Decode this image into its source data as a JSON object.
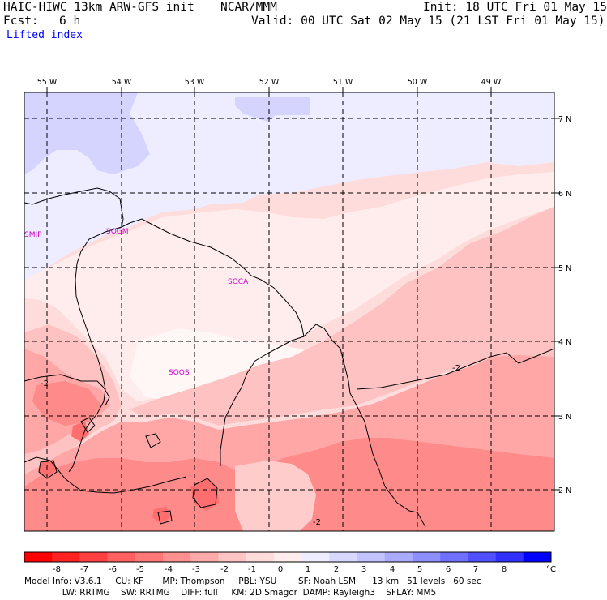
{
  "header": {
    "model_title": "HAIC-HIWC 13km ARW-GFS init",
    "org": "NCAR/MMM",
    "init": "Init: 18 UTC Fri 01 May 15",
    "fcst_label": "Fcst:",
    "fcst_value": "6 h",
    "valid": "Valid: 00 UTC Sat 02 May 15 (21 LST Fri 01 May 15)",
    "field": "Lifted index"
  },
  "map": {
    "longitude_labels": [
      "55 W",
      "54 W",
      "53 W",
      "52 W",
      "51 W",
      "50 W",
      "49 W"
    ],
    "latitude_labels": [
      "7 N",
      "6 N",
      "5 N",
      "4 N",
      "3 N",
      "2 N"
    ],
    "stations": [
      "SMJP",
      "SOGM",
      "SOCA",
      "SOOS"
    ],
    "contour_labels": [
      "-2",
      "-2",
      "-2"
    ]
  },
  "colorbar": {
    "colors": [
      "#ff0000",
      "#ff2222",
      "#ff4040",
      "#ff6060",
      "#ff7878",
      "#ff9090",
      "#ffaaaa",
      "#ffc4c4",
      "#ffdcdc",
      "#ffeded",
      "#ededff",
      "#d8d8ff",
      "#c2c2ff",
      "#aaaaff",
      "#8e8eff",
      "#7070ff",
      "#5050ff",
      "#3030ff",
      "#0000ff"
    ],
    "tick_labels": [
      "-8",
      "-7",
      "-6",
      "-5",
      "-4",
      "-3",
      "-2",
      "-1",
      "0",
      "1",
      "2",
      "3",
      "4",
      "5",
      "6",
      "7",
      "8"
    ],
    "unit": "°C"
  },
  "footer": {
    "line1": "Model Info: V3.6.1     CU: KF       MP: Thompson     PBL: YSU        SF: Noah LSM      13 km   51 levels   60 sec",
    "line2": "              LW: RRTMG    SW: RRTMG    DIFF: full     KM: 2D Smagor  DAMP: Rayleigh3    SFLAY: MM5"
  }
}
